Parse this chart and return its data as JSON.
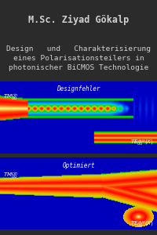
{
  "background_color": "#2b2b2b",
  "author": "M.Sc. Ziyad Gökalp",
  "title_line1": "Design   und   Charakterisierung",
  "title_line2": "eines Polarisationsteilers in",
  "title_line3": "photonischer BiCMOS Technologie",
  "label_designfehler": "Designfehler",
  "label_optimiert": "Optimiert",
  "author_fontsize": 8.5,
  "title_fontsize": 6.8,
  "label_fontsize": 5.0,
  "panel_label_fontsize": 5.5,
  "fig_width": 2.0,
  "fig_height": 3.0,
  "dpi": 100
}
